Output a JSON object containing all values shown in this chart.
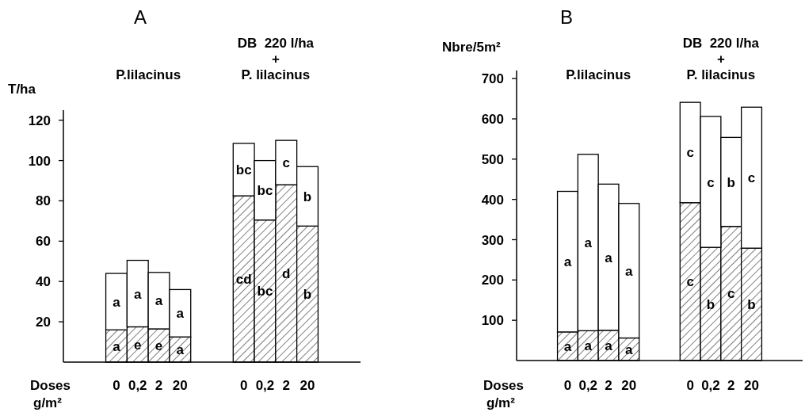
{
  "chart_data": [
    {
      "type": "bar",
      "title": "A",
      "ylabel": "T/ha",
      "xlabel": "Doses g/m²",
      "stacked": true,
      "ylim": [
        0,
        125
      ],
      "yticks": [
        20,
        40,
        60,
        80,
        100,
        120
      ],
      "categories": [
        null,
        null,
        "0",
        "0,2",
        "2",
        "20",
        null,
        null,
        "0",
        "0,2",
        "2",
        "20",
        null,
        null
      ],
      "annotations": [
        "P.lilacinus",
        "DB  220 l/ha\n+\nP. lilacinus"
      ],
      "series": [
        {
          "color": "#000000",
          "values": [
            null,
            null,
            16,
            17.5,
            16.5,
            12.5,
            null,
            null,
            82.5,
            70.5,
            88,
            67.5,
            null,
            null
          ],
          "value_labels": [
            null,
            null,
            "a",
            "e",
            "e",
            "a",
            null,
            null,
            "cd",
            "bc",
            "d",
            "b",
            null,
            null
          ]
        },
        {
          "color": "#ffffff",
          "values": [
            null,
            null,
            28,
            33,
            28,
            23.5,
            null,
            null,
            26,
            29.5,
            22,
            29.5,
            null,
            null
          ],
          "value_labels": [
            null,
            null,
            "a",
            "a",
            "a",
            "a",
            null,
            null,
            "bc",
            "bc",
            "c",
            "b",
            null,
            null
          ]
        }
      ]
    },
    {
      "type": "bar",
      "title": "B",
      "ylabel": "Nbre/5m²",
      "xlabel": "Doses g/m²",
      "stacked": true,
      "ylim": [
        0,
        720
      ],
      "yticks": [
        100,
        200,
        300,
        400,
        500,
        600,
        700
      ],
      "categories": [
        null,
        null,
        "0",
        "0,2",
        "2",
        "20",
        null,
        null,
        "0",
        "0,2",
        "2",
        "20",
        null,
        null
      ],
      "annotations": [
        "P.lilacinus",
        "DB  220 l/ha\n+\nP. lilacinus"
      ],
      "series": [
        {
          "color": "#000000",
          "values": [
            null,
            null,
            71,
            74,
            75,
            56,
            null,
            null,
            392,
            281,
            333,
            279,
            null,
            null
          ],
          "value_labels": [
            null,
            null,
            "a",
            "a",
            "a",
            "a",
            null,
            null,
            "c",
            "b",
            "c",
            "b",
            null,
            null
          ]
        },
        {
          "color": "#ffffff",
          "values": [
            null,
            null,
            349,
            438,
            363,
            334,
            null,
            null,
            249,
            325,
            221,
            350,
            null,
            null
          ],
          "value_labels": [
            null,
            null,
            "a",
            "a",
            "a",
            "a",
            null,
            null,
            "c",
            "c",
            "b",
            "c",
            null,
            null
          ]
        }
      ]
    }
  ]
}
